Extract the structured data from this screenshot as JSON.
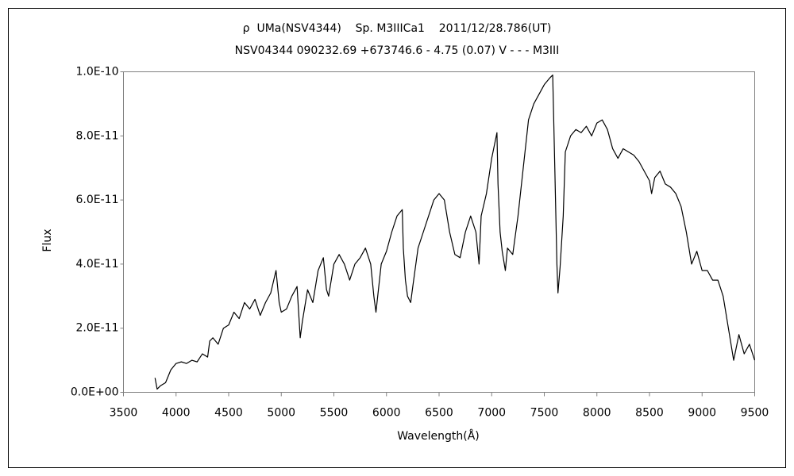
{
  "chart_data": {
    "type": "line",
    "title": "ρ  UMa(NSV4344)    Sp. M3IIICa1    2011/12/28.786(UT)",
    "subtitle": "NSV04344 090232.69 +673746.6 - 4.75 (0.07) V - - - M3III",
    "x_label": "Wavelength(Å)",
    "y_label": "Flux",
    "color": "#000000",
    "grid": false,
    "xlim": [
      3500,
      9500
    ],
    "xticks": [
      3500,
      4000,
      4500,
      5000,
      5500,
      6000,
      6500,
      7000,
      7500,
      8000,
      8500,
      9000,
      9500
    ],
    "ylim": [
      0,
      1e-10
    ],
    "yticks": [
      {
        "value": 0,
        "label": "0.0E+00"
      },
      {
        "value": 2e-11,
        "label": "2.0E-11"
      },
      {
        "value": 4e-11,
        "label": "4.0E-11"
      },
      {
        "value": 6e-11,
        "label": "6.0E-11"
      },
      {
        "value": 8e-11,
        "label": "8.0E-11"
      },
      {
        "value": 1e-10,
        "label": "1.0E-10"
      }
    ],
    "x": [
      3800,
      3820,
      3850,
      3900,
      3950,
      4000,
      4050,
      4100,
      4150,
      4200,
      4250,
      4300,
      4320,
      4350,
      4400,
      4450,
      4500,
      4550,
      4600,
      4650,
      4700,
      4750,
      4800,
      4850,
      4900,
      4950,
      4980,
      5000,
      5050,
      5100,
      5150,
      5180,
      5200,
      5250,
      5300,
      5350,
      5400,
      5430,
      5450,
      5500,
      5550,
      5600,
      5650,
      5700,
      5750,
      5800,
      5850,
      5880,
      5900,
      5950,
      6000,
      6050,
      6100,
      6150,
      6160,
      6180,
      6200,
      6230,
      6250,
      6300,
      6350,
      6400,
      6450,
      6500,
      6550,
      6600,
      6650,
      6700,
      6750,
      6800,
      6850,
      6880,
      6900,
      6950,
      7000,
      7050,
      7060,
      7080,
      7100,
      7130,
      7150,
      7200,
      7250,
      7300,
      7350,
      7400,
      7450,
      7500,
      7550,
      7580,
      7600,
      7620,
      7630,
      7650,
      7680,
      7700,
      7750,
      7800,
      7850,
      7900,
      7950,
      8000,
      8050,
      8100,
      8150,
      8200,
      8250,
      8300,
      8350,
      8400,
      8450,
      8500,
      8520,
      8550,
      8600,
      8650,
      8700,
      8750,
      8800,
      8850,
      8900,
      8950,
      9000,
      9050,
      9100,
      9150,
      9200,
      9250,
      9300,
      9350,
      9400,
      9450,
      9500
    ],
    "values": [
      4.5e-12,
      1e-12,
      2e-12,
      3e-12,
      7e-12,
      9e-12,
      9.5e-12,
      9e-12,
      1e-11,
      9.5e-12,
      1.2e-11,
      1.1e-11,
      1.6e-11,
      1.7e-11,
      1.5e-11,
      2e-11,
      2.1e-11,
      2.5e-11,
      2.3e-11,
      2.8e-11,
      2.6e-11,
      2.9e-11,
      2.4e-11,
      2.8e-11,
      3.1e-11,
      3.8e-11,
      2.8e-11,
      2.5e-11,
      2.6e-11,
      3e-11,
      3.3e-11,
      1.7e-11,
      2.2e-11,
      3.2e-11,
      2.8e-11,
      3.8e-11,
      4.2e-11,
      3.2e-11,
      3e-11,
      4e-11,
      4.3e-11,
      4e-11,
      3.5e-11,
      4e-11,
      4.2e-11,
      4.5e-11,
      4e-11,
      3e-11,
      2.5e-11,
      4e-11,
      4.4e-11,
      5e-11,
      5.5e-11,
      5.7e-11,
      4.5e-11,
      3.5e-11,
      3e-11,
      2.8e-11,
      3.3e-11,
      4.5e-11,
      5e-11,
      5.5e-11,
      6e-11,
      6.2e-11,
      6e-11,
      5e-11,
      4.3e-11,
      4.2e-11,
      5e-11,
      5.5e-11,
      5e-11,
      4e-11,
      5.5e-11,
      6.2e-11,
      7.3e-11,
      8.1e-11,
      6.5e-11,
      5e-11,
      4.4e-11,
      3.8e-11,
      4.5e-11,
      4.3e-11,
      5.5e-11,
      7e-11,
      8.5e-11,
      9e-11,
      9.3e-11,
      9.6e-11,
      9.8e-11,
      9.9e-11,
      7e-11,
      4e-11,
      3.1e-11,
      3.9e-11,
      5.5e-11,
      7.5e-11,
      8e-11,
      8.2e-11,
      8.1e-11,
      8.3e-11,
      8e-11,
      8.4e-11,
      8.5e-11,
      8.2e-11,
      7.6e-11,
      7.3e-11,
      7.6e-11,
      7.5e-11,
      7.4e-11,
      7.2e-11,
      6.9e-11,
      6.6e-11,
      6.2e-11,
      6.7e-11,
      6.9e-11,
      6.5e-11,
      6.4e-11,
      6.2e-11,
      5.8e-11,
      5e-11,
      4e-11,
      4.4e-11,
      3.8e-11,
      3.8e-11,
      3.5e-11,
      3.5e-11,
      3e-11,
      2e-11,
      1e-11,
      1.8e-11,
      1.2e-11,
      1.5e-11,
      1e-11
    ]
  }
}
